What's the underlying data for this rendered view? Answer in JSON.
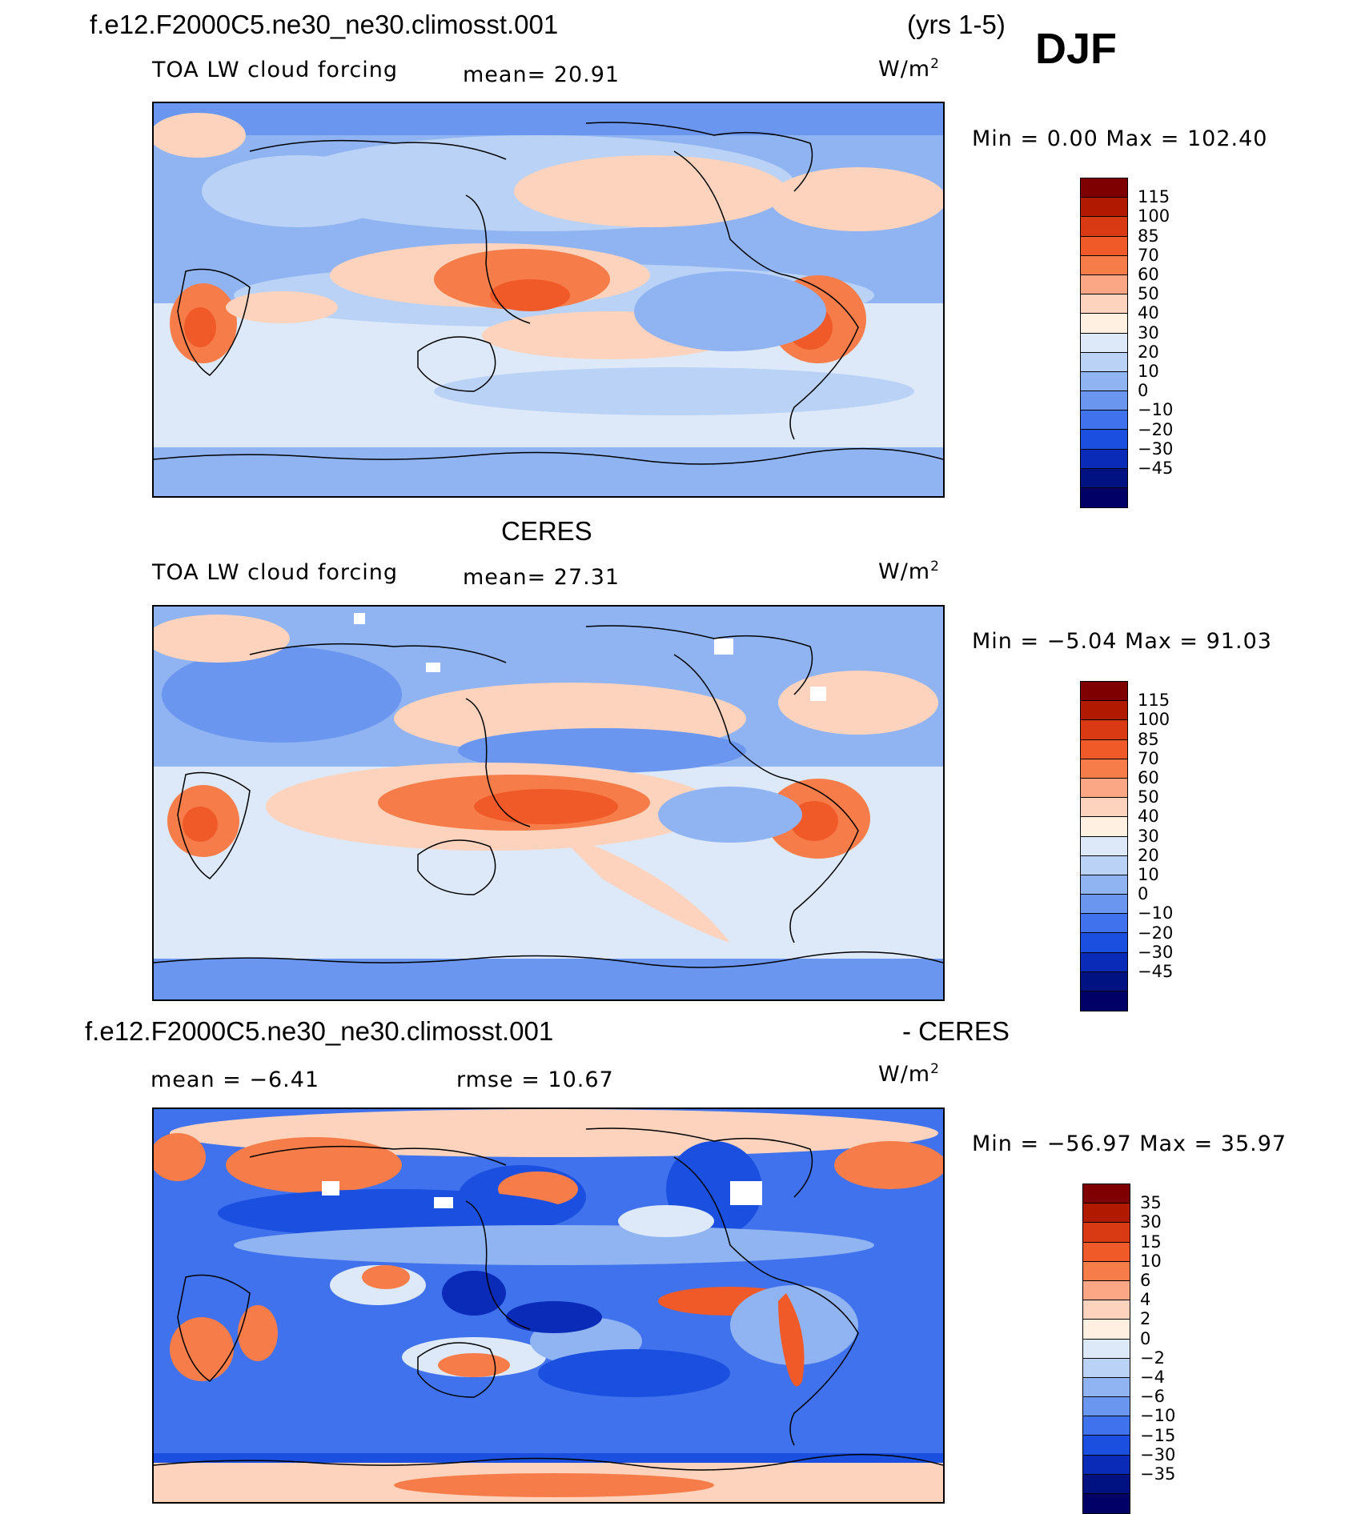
{
  "header": {
    "case_name": "f.e12.F2000C5.ne30_ne30.climosst.001",
    "years": "(yrs 1-5)",
    "season": "DJF"
  },
  "panel1": {
    "variable": "TOA LW cloud forcing",
    "mean_label": "mean=   20.91",
    "units": "W/m",
    "units_exp": "2",
    "minmax": "Min =    0.00 Max =  102.40"
  },
  "panel2": {
    "title": "CERES",
    "variable": "TOA LW cloud forcing",
    "mean_label": "mean=   27.31",
    "units": "W/m",
    "units_exp": "2",
    "minmax": "Min =   −5.04 Max =   91.03"
  },
  "panel3": {
    "title_left": "f.e12.F2000C5.ne30_ne30.climosst.001",
    "title_right": "- CERES",
    "mean_label": "mean =  −6.41",
    "rmse_label": "rmse =   10.67",
    "units": "W/m",
    "units_exp": "2",
    "minmax": "Min = −56.97 Max =   35.97"
  },
  "colorbar_main": {
    "colors": [
      "#7f0000",
      "#b21a00",
      "#d93a14",
      "#f05a28",
      "#f67d4a",
      "#fba785",
      "#fdd3bd",
      "#fff0e2",
      "#dde9f8",
      "#b9d2f5",
      "#90b3f1",
      "#6a96ef",
      "#3f72ec",
      "#1a4fe0",
      "#0a2ab8",
      "#001182",
      "#000066"
    ],
    "labels": [
      "115",
      "100",
      "85",
      "70",
      "60",
      "50",
      "40",
      "30",
      "20",
      "10",
      "0",
      "−10",
      "−20",
      "−30",
      "−45"
    ]
  },
  "colorbar_diff": {
    "colors": [
      "#7f0000",
      "#b21a00",
      "#d93a14",
      "#f05a28",
      "#f67d4a",
      "#fba785",
      "#fdd3bd",
      "#fff0e2",
      "#dde9f8",
      "#b9d2f5",
      "#90b3f1",
      "#6a96ef",
      "#3f72ec",
      "#1a4fe0",
      "#0a2ab8",
      "#001182",
      "#000066"
    ],
    "labels": [
      "35",
      "30",
      "15",
      "10",
      "6",
      "4",
      "2",
      "0",
      "−2",
      "−4",
      "−6",
      "−10",
      "−15",
      "−30",
      "−35"
    ]
  }
}
